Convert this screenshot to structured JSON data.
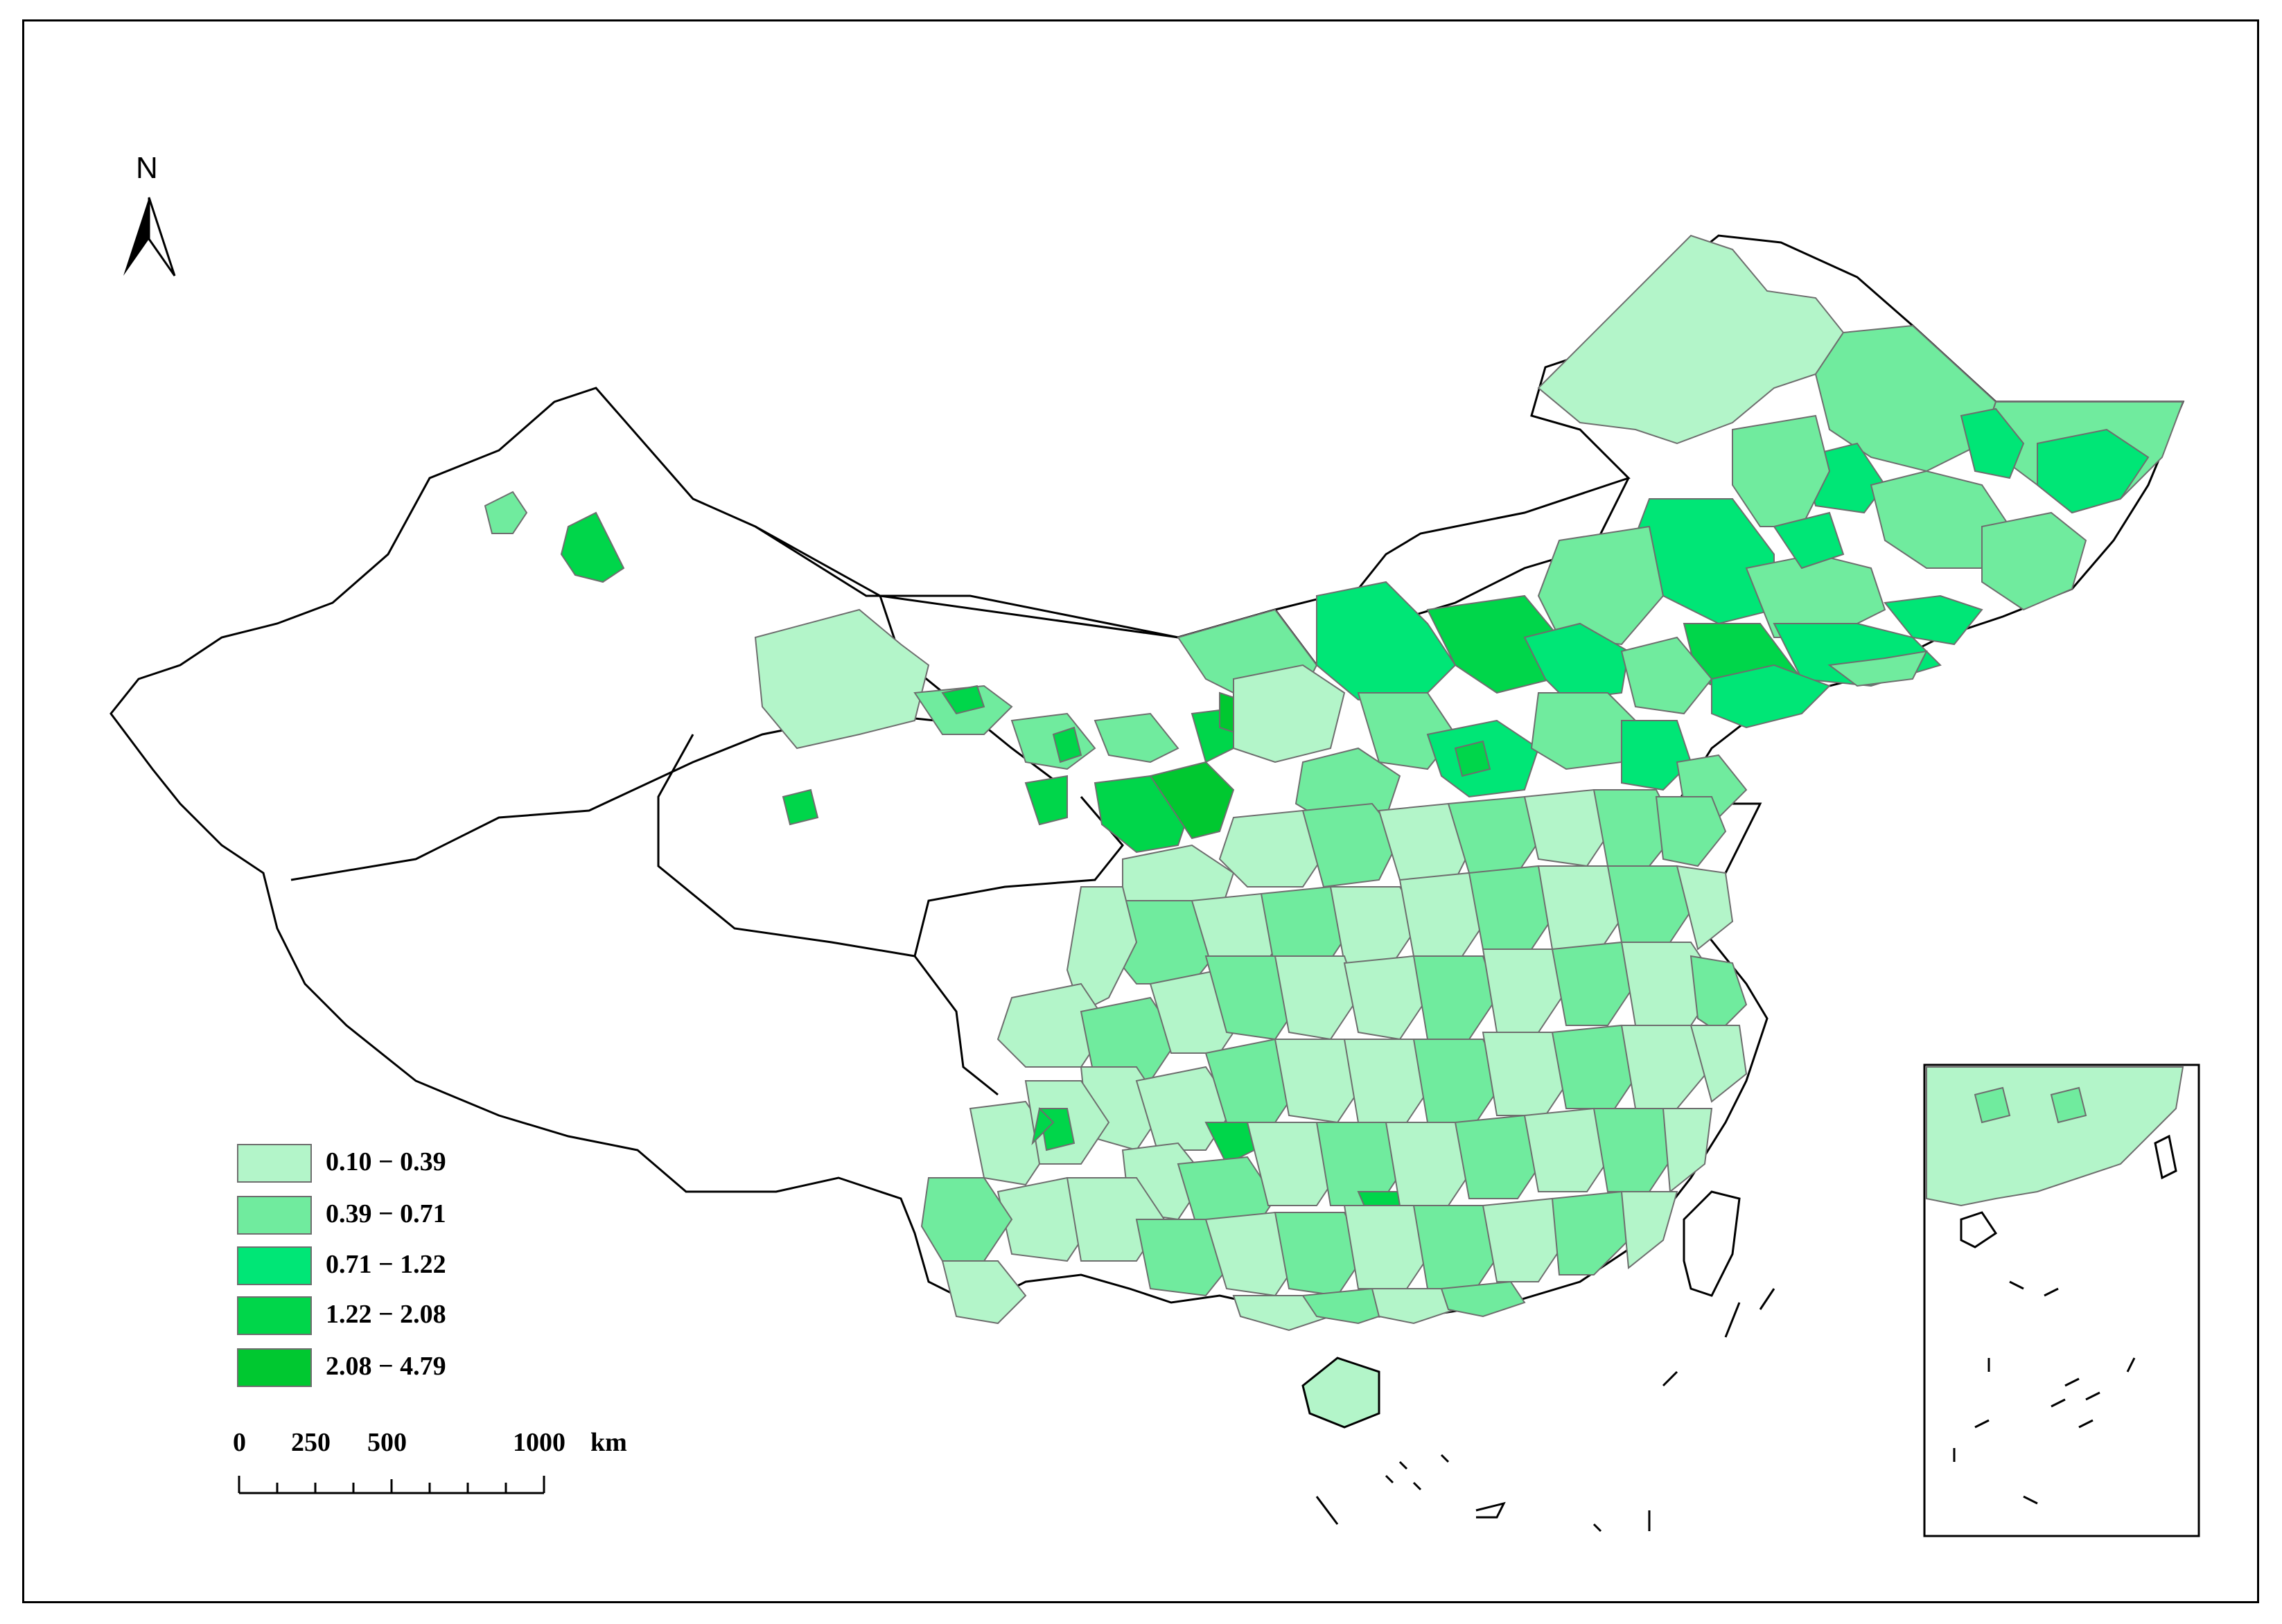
{
  "north_arrow": {
    "label": "N"
  },
  "legend": {
    "classes": [
      {
        "range": "0.10 − 0.39",
        "color": "#b3f5c9"
      },
      {
        "range": "0.39 − 0.71",
        "color": "#70eb9e"
      },
      {
        "range": "0.71 − 1.22",
        "color": "#00e676"
      },
      {
        "range": "1.22 − 2.08",
        "color": "#00d64a"
      },
      {
        "range": "2.08 − 4.79",
        "color": "#00c830"
      }
    ]
  },
  "scale_bar": {
    "ticks": [
      "0",
      "250",
      "500",
      "1000"
    ],
    "unit": "km"
  },
  "colors": {
    "boundary": "#000000",
    "inner_boundary": "#6e6e6e",
    "no_data": "#ffffff"
  }
}
